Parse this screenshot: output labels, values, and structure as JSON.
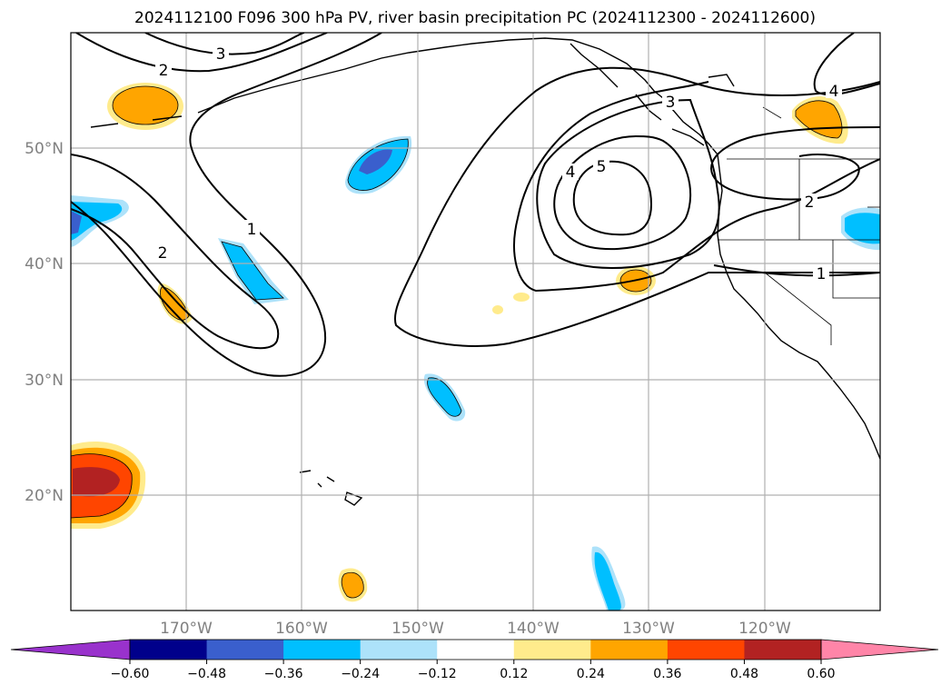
{
  "title": "2024112100 F096 300 hPa PV, river basin precipitation PC (2024112300 - 2024112600)",
  "latitude_labels": [
    "50°N",
    "40°N",
    "30°N",
    "20°N"
  ],
  "longitude_labels": [
    "170°W",
    "160°W",
    "150°W",
    "140°W",
    "130°W",
    "120°W"
  ],
  "contour_labels": [
    "3",
    "2",
    "1",
    "2",
    "4",
    "5",
    "3",
    "2",
    "1",
    "4"
  ],
  "colorbar": {
    "ticks": [
      "−0.60",
      "−0.48",
      "−0.36",
      "−0.24",
      "−0.12",
      "0.12",
      "0.24",
      "0.36",
      "0.48",
      "0.60"
    ],
    "colors": [
      "#9932CC",
      "#00008B",
      "#3A5FCD",
      "#00BFFF",
      "#ADE2FA",
      "#FFFFFF",
      "#FFEB8C",
      "#FFA500",
      "#FF4500",
      "#B22222",
      "#FF85A8"
    ]
  },
  "colors": {
    "grid": "#b0b0b0",
    "axis_label": "#808080"
  }
}
